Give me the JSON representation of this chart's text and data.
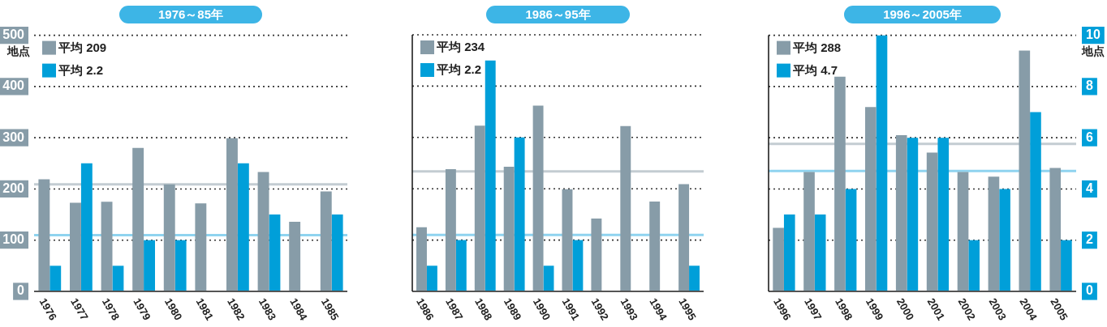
{
  "chart_data": [
    {
      "type": "bar",
      "title": "1976～85年",
      "ylabel": "地点",
      "categories": [
        "1976",
        "1977",
        "1978",
        "1979",
        "1980",
        "1981",
        "1982",
        "1983",
        "1984",
        "1985"
      ],
      "series": [
        {
          "name": "平均 209",
          "color": "#879ca8",
          "values": [
            219,
            173,
            175,
            280,
            209,
            172,
            299,
            233,
            136,
            195
          ]
        },
        {
          "name": "平均 2.2",
          "color": "#009fd9",
          "axis": "y2",
          "values": [
            1,
            5,
            1,
            2,
            2,
            0,
            5,
            3,
            0,
            3
          ]
        }
      ],
      "ylim": [
        0,
        500
      ],
      "yticks": [
        0,
        100,
        200,
        300,
        400,
        500
      ],
      "y2lim": [
        0,
        10
      ],
      "ref_lines": [
        {
          "axis": "y",
          "value": 209,
          "color": "#c3ccd2"
        },
        {
          "axis": "y2",
          "value": 2.2,
          "color": "#8fd3ef"
        }
      ],
      "grid": "y",
      "legend": "top left",
      "line_style": "dotted"
    },
    {
      "type": "bar",
      "title": "1986～95年",
      "categories": [
        "1986",
        "1987",
        "1988",
        "1989",
        "1990",
        "1991",
        "1992",
        "1993",
        "1994",
        "1995"
      ],
      "series": [
        {
          "name": "平均 234",
          "color": "#879ca8",
          "values": [
            125,
            238,
            323,
            243,
            362,
            199,
            142,
            322,
            175,
            209
          ]
        },
        {
          "name": "平均 2.2",
          "color": "#009fd9",
          "axis": "y2",
          "values": [
            1,
            2,
            9,
            6,
            1,
            2,
            0,
            0,
            0,
            1
          ]
        }
      ],
      "ylim": [
        0,
        500
      ],
      "yticks": [
        0,
        100,
        200,
        300,
        400,
        500
      ],
      "y2lim": [
        0,
        10
      ],
      "tick_labels": "x",
      "ref_lines": [
        {
          "axis": "y",
          "value": 234,
          "color": "#c3ccd2"
        },
        {
          "axis": "y2",
          "value": 2.2,
          "color": "#8fd3ef"
        }
      ],
      "grid": "y",
      "legend": "top left",
      "line_style": "dotted"
    },
    {
      "type": "bar",
      "title": "1996～2005年",
      "y2label": "地点",
      "categories": [
        "1996",
        "1997",
        "1998",
        "1999",
        "2000",
        "2001",
        "2002",
        "2003",
        "2004",
        "2005"
      ],
      "series": [
        {
          "name": "平均 288",
          "color": "#879ca8",
          "values": [
            124,
            233,
            419,
            360,
            305,
            271,
            233,
            224,
            470,
            241
          ]
        },
        {
          "name": "平均 4.7",
          "color": "#009fd9",
          "axis": "y2",
          "values": [
            3,
            3,
            4,
            10,
            6,
            6,
            2,
            4,
            7,
            2
          ]
        }
      ],
      "ylim": [
        0,
        500
      ],
      "y2lim": [
        0,
        10
      ],
      "y2ticks": [
        0,
        2,
        4,
        6,
        8,
        10
      ],
      "ref_lines": [
        {
          "axis": "y",
          "value": 288,
          "color": "#c3ccd2"
        },
        {
          "axis": "y2",
          "value": 4.7,
          "color": "#8fd3ef"
        }
      ],
      "grid": "y",
      "legend": "top left",
      "line_style": "dotted"
    }
  ]
}
